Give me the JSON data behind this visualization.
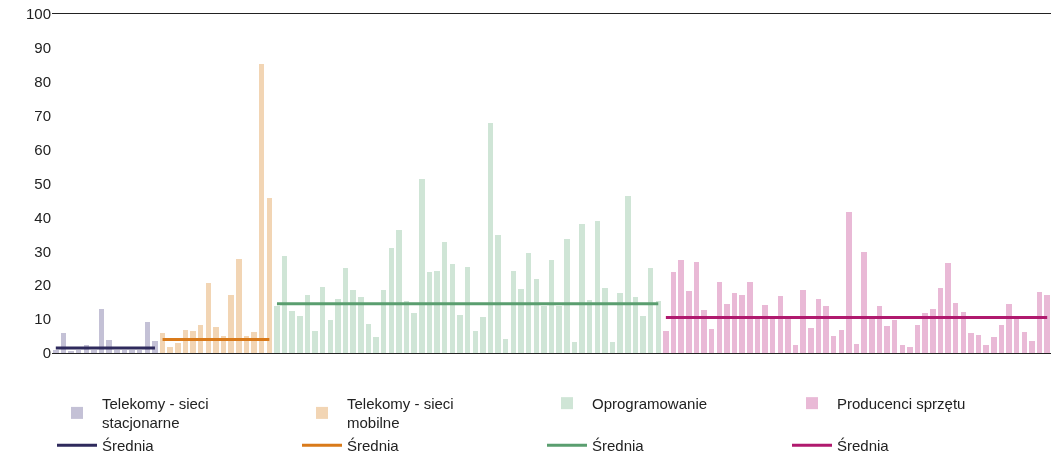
{
  "chart_data": {
    "type": "bar",
    "categories": [
      null,
      null,
      null,
      null,
      null,
      null,
      null,
      null,
      null,
      null,
      null,
      null,
      null,
      null,
      null,
      null,
      null,
      null,
      null,
      null,
      null,
      null,
      null,
      null,
      null,
      null,
      null,
      null,
      null,
      null,
      null,
      null,
      null,
      null,
      null,
      null,
      null,
      null,
      null,
      null,
      null,
      null,
      null,
      null,
      null,
      null,
      null,
      null,
      null,
      null,
      null,
      null,
      null,
      null,
      null,
      null,
      null,
      null,
      null,
      null,
      null,
      null,
      null,
      null,
      null,
      null,
      null,
      null,
      null,
      null,
      null,
      null,
      null,
      null,
      null,
      null,
      null,
      null,
      null,
      null,
      null,
      null,
      null,
      null,
      null,
      null,
      null,
      null,
      null,
      null,
      null,
      null,
      null,
      null,
      null,
      null,
      null,
      null,
      null,
      null,
      null,
      null,
      null,
      null,
      null,
      null,
      null,
      null,
      null,
      null,
      null,
      null,
      null,
      null,
      null,
      null,
      null,
      null,
      null,
      null,
      null,
      null,
      null,
      null,
      null,
      null,
      null,
      null,
      null,
      null,
      null
    ],
    "ylim": [
      0,
      100
    ],
    "yticks": [
      0,
      10,
      20,
      30,
      40,
      50,
      60,
      70,
      80,
      90,
      100
    ],
    "legend": "bottom",
    "series": [
      {
        "name": "Telekomy - sieci stacjonarne",
        "color": "#c4c1d6",
        "values": [
          1,
          5.9,
          0.5,
          1,
          2.5,
          1,
          13,
          3.9,
          1,
          1,
          1,
          1,
          9.1,
          3.4,
          null,
          null,
          null,
          null,
          null,
          null,
          null,
          null,
          null,
          null,
          null,
          null,
          null,
          null,
          null,
          null,
          null,
          null,
          null,
          null,
          null,
          null,
          null,
          null,
          null,
          null,
          null,
          null,
          null,
          null,
          null,
          null,
          null,
          null,
          null,
          null,
          null,
          null,
          null,
          null,
          null,
          null,
          null,
          null,
          null,
          null,
          null,
          null,
          null,
          null,
          null,
          null,
          null,
          null,
          null,
          null,
          null,
          null,
          null,
          null,
          null,
          null,
          null,
          null,
          null,
          null,
          null,
          null,
          null,
          null,
          null,
          null,
          null,
          null,
          null,
          null,
          null,
          null,
          null,
          null,
          null,
          null,
          null,
          null,
          null,
          null,
          null,
          null,
          null,
          null,
          null,
          null,
          null,
          null,
          null,
          null,
          null,
          null,
          null,
          null,
          null,
          null,
          null,
          null,
          null,
          null,
          null,
          null,
          null,
          null,
          null,
          null,
          null,
          null,
          null,
          null,
          null
        ]
      },
      {
        "name": "Telekomy - sieci mobilne",
        "color": "#f2d5b4",
        "values": [
          null,
          null,
          null,
          null,
          null,
          null,
          null,
          null,
          null,
          null,
          null,
          null,
          null,
          null,
          5.9,
          1.8,
          3,
          6.9,
          6.4,
          8.2,
          20.6,
          7.8,
          5.1,
          17.1,
          27.6,
          5.1,
          6.2,
          85.3,
          45.7,
          null,
          null,
          null,
          null,
          null,
          null,
          null,
          null,
          null,
          null,
          null,
          null,
          null,
          null,
          null,
          null,
          null,
          null,
          null,
          null,
          null,
          null,
          null,
          null,
          null,
          null,
          null,
          null,
          null,
          null,
          null,
          null,
          null,
          null,
          null,
          null,
          null,
          null,
          null,
          null,
          null,
          null,
          null,
          null,
          null,
          null,
          null,
          null,
          null,
          null,
          null,
          null,
          null,
          null,
          null,
          null,
          null,
          null,
          null,
          null,
          null,
          null,
          null,
          null,
          null,
          null,
          null,
          null,
          null,
          null,
          null,
          null,
          null,
          null,
          null,
          null,
          null,
          null,
          null,
          null,
          null,
          null,
          null,
          null,
          null,
          null,
          null,
          null,
          null,
          null,
          null,
          null,
          null,
          null,
          null,
          null,
          null,
          null,
          null,
          null,
          null,
          null
        ]
      },
      {
        "name": "Oprogramowanie",
        "color": "#cfe5d6",
        "values": [
          null,
          null,
          null,
          null,
          null,
          null,
          null,
          null,
          null,
          null,
          null,
          null,
          null,
          null,
          null,
          null,
          null,
          null,
          null,
          null,
          null,
          null,
          null,
          null,
          null,
          null,
          null,
          null,
          null,
          14,
          28.5,
          12.5,
          10.8,
          17,
          6.4,
          19.6,
          9.7,
          15.8,
          25.1,
          18.6,
          16.6,
          8.6,
          4.7,
          18.7,
          31,
          36.3,
          15.3,
          11.9,
          51.3,
          23.8,
          24.1,
          32.7,
          26.3,
          11.2,
          25.5,
          6.4,
          10.6,
          67.8,
          34.8,
          4.1,
          24.1,
          18.9,
          29.5,
          21.7,
          14,
          27.3,
          14,
          33.5,
          3.3,
          38,
          15.5,
          38.9,
          19.1,
          3.3,
          17.6,
          46.3,
          16.4,
          10.8,
          25.1,
          15.2,
          null,
          null,
          null,
          null,
          null,
          null,
          null,
          null,
          null,
          null,
          null,
          null,
          null,
          null,
          null,
          null,
          null,
          null,
          null,
          null,
          null,
          null,
          null,
          null,
          null,
          null,
          null,
          null,
          null,
          null,
          null,
          null,
          null,
          null,
          null,
          null,
          null,
          null,
          null,
          null,
          null,
          null,
          null,
          null,
          null,
          null,
          null,
          null,
          null,
          null,
          null
        ]
      },
      {
        "name": "Producenci sprzętu",
        "color": "#e9b9d6",
        "values": [
          null,
          null,
          null,
          null,
          null,
          null,
          null,
          null,
          null,
          null,
          null,
          null,
          null,
          null,
          null,
          null,
          null,
          null,
          null,
          null,
          null,
          null,
          null,
          null,
          null,
          null,
          null,
          null,
          null,
          null,
          null,
          null,
          null,
          null,
          null,
          null,
          null,
          null,
          null,
          null,
          null,
          null,
          null,
          null,
          null,
          null,
          null,
          null,
          null,
          null,
          null,
          null,
          null,
          null,
          null,
          null,
          null,
          null,
          null,
          null,
          null,
          null,
          null,
          null,
          null,
          null,
          null,
          null,
          null,
          null,
          null,
          null,
          null,
          null,
          null,
          null,
          null,
          null,
          null,
          null,
          6.4,
          24,
          27.4,
          18.2,
          26.9,
          12.8,
          7,
          20.8,
          14.5,
          17.7,
          17.1,
          20.9,
          10,
          14.2,
          10,
          16.9,
          10,
          2.5,
          18.5,
          7.3,
          15.9,
          13.8,
          4.9,
          6.8,
          41.6,
          2.7,
          29.8,
          10,
          13.9,
          8,
          9.6,
          2.3,
          1.8,
          8.4,
          11.8,
          13,
          19.2,
          26.5,
          14.7,
          12.2,
          6,
          5.3,
          2.3,
          4.6,
          8.3,
          14.6,
          10,
          6.2,
          3.5,
          17.9,
          17
        ]
      },
      {
        "type": "line",
        "name": "Średnia",
        "color": "#2e2a5c",
        "values": [
          1.5,
          1.5,
          1.5,
          1.5,
          1.5,
          1.5,
          1.5,
          1.5,
          1.5,
          1.5,
          1.5,
          1.5,
          1.5,
          1.5,
          null,
          null,
          null,
          null,
          null,
          null,
          null,
          null,
          null,
          null,
          null,
          null,
          null,
          null,
          null,
          null,
          null,
          null,
          null,
          null,
          null,
          null,
          null,
          null,
          null,
          null,
          null,
          null,
          null,
          null,
          null,
          null,
          null,
          null,
          null,
          null,
          null,
          null,
          null,
          null,
          null,
          null,
          null,
          null,
          null,
          null,
          null,
          null,
          null,
          null,
          null,
          null,
          null,
          null,
          null,
          null,
          null,
          null,
          null,
          null,
          null,
          null,
          null,
          null,
          null,
          null,
          null,
          null,
          null,
          null,
          null,
          null,
          null,
          null,
          null,
          null,
          null,
          null,
          null,
          null,
          null,
          null,
          null,
          null,
          null,
          null,
          null,
          null,
          null,
          null,
          null,
          null,
          null,
          null,
          null,
          null,
          null,
          null,
          null,
          null,
          null,
          null,
          null,
          null,
          null,
          null,
          null,
          null,
          null,
          null,
          null,
          null,
          null,
          null,
          null,
          null,
          null
        ]
      },
      {
        "type": "line",
        "name": "Średnia",
        "color": "#d97a1a",
        "values": [
          null,
          null,
          null,
          null,
          null,
          null,
          null,
          null,
          null,
          null,
          null,
          null,
          null,
          null,
          4,
          4,
          4,
          4,
          4,
          4,
          4,
          4,
          4,
          4,
          4,
          4,
          4,
          4,
          4,
          null,
          null,
          null,
          null,
          null,
          null,
          null,
          null,
          null,
          null,
          null,
          null,
          null,
          null,
          null,
          null,
          null,
          null,
          null,
          null,
          null,
          null,
          null,
          null,
          null,
          null,
          null,
          null,
          null,
          null,
          null,
          null,
          null,
          null,
          null,
          null,
          null,
          null,
          null,
          null,
          null,
          null,
          null,
          null,
          null,
          null,
          null,
          null,
          null,
          null,
          null,
          null,
          null,
          null,
          null,
          null,
          null,
          null,
          null,
          null,
          null,
          null,
          null,
          null,
          null,
          null,
          null,
          null,
          null,
          null,
          null,
          null,
          null,
          null,
          null,
          null,
          null,
          null,
          null,
          null,
          null,
          null,
          null,
          null,
          null,
          null,
          null,
          null,
          null,
          null,
          null,
          null,
          null,
          null,
          null,
          null,
          null,
          null,
          null,
          null,
          null,
          null
        ]
      },
      {
        "type": "line",
        "name": "Średnia",
        "color": "#5a9e6f",
        "values": [
          null,
          null,
          null,
          null,
          null,
          null,
          null,
          null,
          null,
          null,
          null,
          null,
          null,
          null,
          null,
          null,
          null,
          null,
          null,
          null,
          null,
          null,
          null,
          null,
          null,
          null,
          null,
          null,
          null,
          14.5,
          14.5,
          14.5,
          14.5,
          14.5,
          14.5,
          14.5,
          14.5,
          14.5,
          14.5,
          14.5,
          14.5,
          14.5,
          14.5,
          14.5,
          14.5,
          14.5,
          14.5,
          14.5,
          14.5,
          14.5,
          14.5,
          14.5,
          14.5,
          14.5,
          14.5,
          14.5,
          14.5,
          14.5,
          14.5,
          14.5,
          14.5,
          14.5,
          14.5,
          14.5,
          14.5,
          14.5,
          14.5,
          14.5,
          14.5,
          14.5,
          14.5,
          14.5,
          14.5,
          14.5,
          14.5,
          14.5,
          14.5,
          14.5,
          14.5,
          14.5,
          null,
          null,
          null,
          null,
          null,
          null,
          null,
          null,
          null,
          null,
          null,
          null,
          null,
          null,
          null,
          null,
          null,
          null,
          null,
          null,
          null,
          null,
          null,
          null,
          null,
          null,
          null,
          null,
          null,
          null,
          null,
          null,
          null,
          null,
          null,
          null,
          null,
          null,
          null,
          null,
          null,
          null,
          null,
          null,
          null,
          null,
          null,
          null,
          null,
          null,
          null
        ]
      },
      {
        "type": "line",
        "name": "Średnia",
        "color": "#b0196e",
        "values": [
          null,
          null,
          null,
          null,
          null,
          null,
          null,
          null,
          null,
          null,
          null,
          null,
          null,
          null,
          null,
          null,
          null,
          null,
          null,
          null,
          null,
          null,
          null,
          null,
          null,
          null,
          null,
          null,
          null,
          null,
          null,
          null,
          null,
          null,
          null,
          null,
          null,
          null,
          null,
          null,
          null,
          null,
          null,
          null,
          null,
          null,
          null,
          null,
          null,
          null,
          null,
          null,
          null,
          null,
          null,
          null,
          null,
          null,
          null,
          null,
          null,
          null,
          null,
          null,
          null,
          null,
          null,
          null,
          null,
          null,
          null,
          null,
          null,
          null,
          null,
          null,
          null,
          null,
          null,
          null,
          10.5,
          10.5,
          10.5,
          10.5,
          10.5,
          10.5,
          10.5,
          10.5,
          10.5,
          10.5,
          10.5,
          10.5,
          10.5,
          10.5,
          10.5,
          10.5,
          10.5,
          10.5,
          10.5,
          10.5,
          10.5,
          10.5,
          10.5,
          10.5,
          10.5,
          10.5,
          10.5,
          10.5,
          10.5,
          10.5,
          10.5,
          10.5,
          10.5,
          10.5,
          10.5,
          10.5,
          10.5,
          10.5,
          10.5,
          10.5,
          10.5,
          10.5,
          10.5,
          10.5,
          10.5,
          10.5,
          10.5,
          10.5,
          10.5,
          10.5,
          10.5
        ]
      }
    ]
  }
}
